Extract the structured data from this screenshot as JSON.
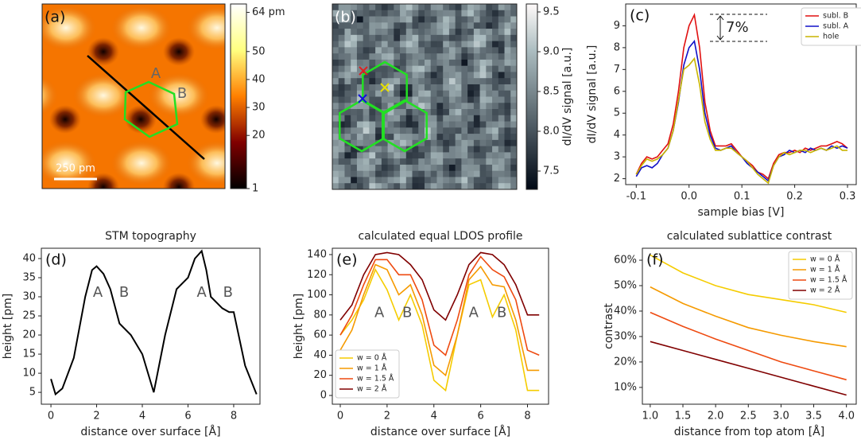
{
  "chart_data": [
    {
      "type": "image",
      "panel_label": "(a)",
      "colormap": "afmhot",
      "clim": [
        1,
        67
      ],
      "cticks": [
        {
          "value": 64,
          "label": "64 pm"
        },
        50,
        40,
        30,
        20,
        1
      ],
      "annotations": [
        "A",
        "B",
        "250 pm"
      ]
    },
    {
      "type": "image",
      "panel_label": "(b)",
      "colormap": "bone",
      "clim": [
        7.27,
        9.6
      ],
      "cticks": [
        {
          "value": 9.5,
          "label": "9.5"
        },
        {
          "value": 9.0,
          "label": "9.0"
        },
        8.5,
        {
          "value": 8.0,
          "label": "8.0"
        },
        7.5
      ],
      "colorbar_label": "dI/dV signal [a.u.]"
    },
    {
      "type": "line",
      "panel_label": "(c)",
      "xlabel": "sample bias [V]",
      "ylabel": "dI/dV signal [a.u.]",
      "xlim": [
        -0.12,
        0.3165
      ],
      "ylim": [
        1.73,
        10.0
      ],
      "xticks": [
        -0.1,
        {
          "value": 0,
          "label": "0.0"
        },
        0.1,
        0.2,
        0.3
      ],
      "yticks": [
        2,
        3,
        4,
        5,
        6,
        7,
        8,
        9
      ],
      "legend": "upper right",
      "annotations": [
        "7%"
      ],
      "x": [
        -0.1,
        -0.09,
        -0.08,
        -0.07,
        -0.06,
        -0.05,
        -0.04,
        -0.03,
        -0.02,
        -0.01,
        0,
        0.01,
        0.02,
        0.03,
        0.04,
        0.05,
        0.06,
        0.07,
        0.08,
        0.09,
        0.1,
        0.11,
        0.12,
        0.13,
        0.14,
        0.15,
        0.16,
        0.17,
        0.18,
        0.19,
        0.2,
        0.21,
        0.22,
        0.23,
        0.24,
        0.25,
        0.26,
        0.27,
        0.28,
        0.29,
        0.3
      ],
      "series": [
        {
          "name": "subl. B",
          "color": "#e01010",
          "values": [
            2.2,
            2.7,
            3.0,
            2.9,
            3.0,
            3.3,
            3.6,
            4.5,
            6.0,
            8.0,
            9.0,
            9.5,
            8.0,
            5.5,
            4.2,
            3.5,
            3.5,
            3.5,
            3.6,
            3.3,
            3.0,
            2.8,
            2.6,
            2.3,
            2.2,
            2.0,
            2.7,
            3.1,
            3.2,
            3.2,
            3.3,
            3.2,
            3.4,
            3.3,
            3.4,
            3.5,
            3.5,
            3.6,
            3.7,
            3.6,
            3.4
          ]
        },
        {
          "name": "subl. A",
          "color": "#1010c8",
          "values": [
            2.1,
            2.5,
            2.6,
            2.5,
            2.7,
            3.1,
            3.4,
            4.2,
            5.5,
            7.2,
            8.0,
            8.3,
            7.0,
            5.0,
            4.0,
            3.4,
            3.3,
            3.4,
            3.5,
            3.2,
            3.0,
            2.7,
            2.5,
            2.3,
            2.1,
            1.9,
            2.6,
            3.0,
            3.1,
            3.3,
            3.2,
            3.3,
            3.2,
            3.4,
            3.3,
            3.4,
            3.3,
            3.5,
            3.4,
            3.5,
            3.4
          ]
        },
        {
          "name": "hole",
          "color": "#c8b400",
          "values": [
            2.2,
            2.6,
            2.9,
            2.8,
            2.9,
            3.1,
            3.4,
            4.2,
            5.6,
            7.0,
            7.2,
            7.5,
            6.3,
            4.6,
            3.8,
            3.3,
            3.3,
            3.4,
            3.4,
            3.2,
            3.0,
            2.8,
            2.5,
            2.2,
            2.0,
            1.8,
            2.6,
            3.0,
            3.2,
            3.1,
            3.2,
            3.3,
            3.3,
            3.2,
            3.3,
            3.4,
            3.3,
            3.4,
            3.5,
            3.3,
            3.3
          ]
        }
      ]
    },
    {
      "type": "line",
      "panel_label": "(d)",
      "title": "STM topography",
      "xlabel": "distance over surface [Å]",
      "ylabel": "height [pm]",
      "xlim": [
        -0.42,
        9.15
      ],
      "ylim": [
        1.9,
        42.7
      ],
      "xticks": [
        0,
        2,
        4,
        6,
        8
      ],
      "yticks": [
        5,
        10,
        15,
        20,
        25,
        30,
        35,
        40
      ],
      "annotations": [
        "A",
        "B",
        "A",
        "B"
      ],
      "x": [
        0,
        0.2,
        0.5,
        1,
        1.5,
        1.8,
        2,
        2.3,
        2.6,
        3,
        3.5,
        4,
        4.5,
        5,
        5.5,
        6,
        6.3,
        6.6,
        6.8,
        7,
        7.5,
        7.8,
        8,
        8.5,
        9
      ],
      "series": [
        {
          "color": "#000000",
          "values": [
            8.5,
            4.5,
            6,
            14,
            30,
            37,
            38,
            36,
            32,
            23,
            20,
            15,
            5,
            20,
            32,
            35,
            40,
            42,
            37,
            30,
            27,
            26,
            26,
            12,
            4.5
          ]
        }
      ]
    },
    {
      "type": "line",
      "panel_label": "(e)",
      "title": "calculated equal LDOS profile",
      "xlabel": "distance over surface [Å]",
      "ylabel": "height [pm]",
      "xlim": [
        -0.34,
        8.9
      ],
      "ylim": [
        -8.7,
        146.3
      ],
      "xticks": [
        0,
        2,
        4,
        6,
        8
      ],
      "yticks": [
        0,
        20,
        40,
        60,
        80,
        100,
        120,
        140
      ],
      "legend": "lower left",
      "annotations": [
        "A",
        "B",
        "A",
        "B"
      ],
      "x": [
        0,
        0.5,
        1,
        1.5,
        2,
        2.5,
        3,
        3.5,
        4,
        4.5,
        5,
        5.5,
        6,
        6.5,
        7,
        7.5,
        8,
        8.5
      ],
      "series": [
        {
          "name": "w = 0 Å",
          "color": "#f5cc00",
          "values": [
            60,
            75,
            95,
            125,
            105,
            75,
            100,
            70,
            15,
            5,
            60,
            110,
            115,
            78,
            100,
            65,
            5,
            5
          ]
        },
        {
          "name": "w = 1 Å",
          "color": "#f59a00",
          "values": [
            45,
            65,
            100,
            130,
            125,
            100,
            110,
            80,
            30,
            20,
            60,
            115,
            128,
            110,
            108,
            75,
            25,
            25
          ]
        },
        {
          "name": "w = 1.5 Å",
          "color": "#ee4a10",
          "values": [
            60,
            80,
            110,
            135,
            135,
            120,
            120,
            95,
            50,
            40,
            75,
            120,
            138,
            125,
            118,
            95,
            45,
            40
          ]
        },
        {
          "name": "w = 2 Å",
          "color": "#800000",
          "values": [
            75,
            90,
            120,
            140,
            142,
            140,
            130,
            115,
            85,
            75,
            100,
            130,
            142,
            140,
            130,
            110,
            80,
            80
          ]
        }
      ]
    },
    {
      "type": "line",
      "panel_label": "(f)",
      "title": "calculated sublattice contrast",
      "xlabel": "distance from top atom [Å]",
      "ylabel": "contrast",
      "xlim": [
        0.88,
        4.15
      ],
      "ylim": [
        3.4,
        64.7
      ],
      "xticks": [
        {
          "value": 1,
          "label": "1.0"
        },
        1.5,
        {
          "value": 2,
          "label": "2.0"
        },
        2.5,
        {
          "value": 3,
          "label": "3.0"
        },
        3.5,
        {
          "value": 4,
          "label": "4.0"
        }
      ],
      "yticks": [
        {
          "value": 10,
          "label": "10%"
        },
        {
          "value": 20,
          "label": "20%"
        },
        {
          "value": 30,
          "label": "30%"
        },
        {
          "value": 40,
          "label": "40%"
        },
        {
          "value": 50,
          "label": "50%"
        },
        {
          "value": 60,
          "label": "60%"
        }
      ],
      "legend": "upper right",
      "x": [
        1,
        1.5,
        2,
        2.5,
        3,
        3.5,
        4
      ],
      "series": [
        {
          "name": "w = 0 Å",
          "color": "#f5cc00",
          "values": [
            62,
            55,
            50,
            46.5,
            44.5,
            42.5,
            39.5
          ]
        },
        {
          "name": "w = 1 Å",
          "color": "#f59a00",
          "values": [
            49.5,
            43,
            38,
            33.5,
            30.5,
            28,
            26
          ]
        },
        {
          "name": "w = 1.5 Å",
          "color": "#ee4a10",
          "values": [
            39.5,
            34,
            29,
            24.5,
            20,
            16.5,
            13
          ]
        },
        {
          "name": "w = 2 Å",
          "color": "#800000",
          "values": [
            28,
            24.5,
            21,
            17.5,
            14,
            10.5,
            7
          ]
        }
      ]
    }
  ]
}
